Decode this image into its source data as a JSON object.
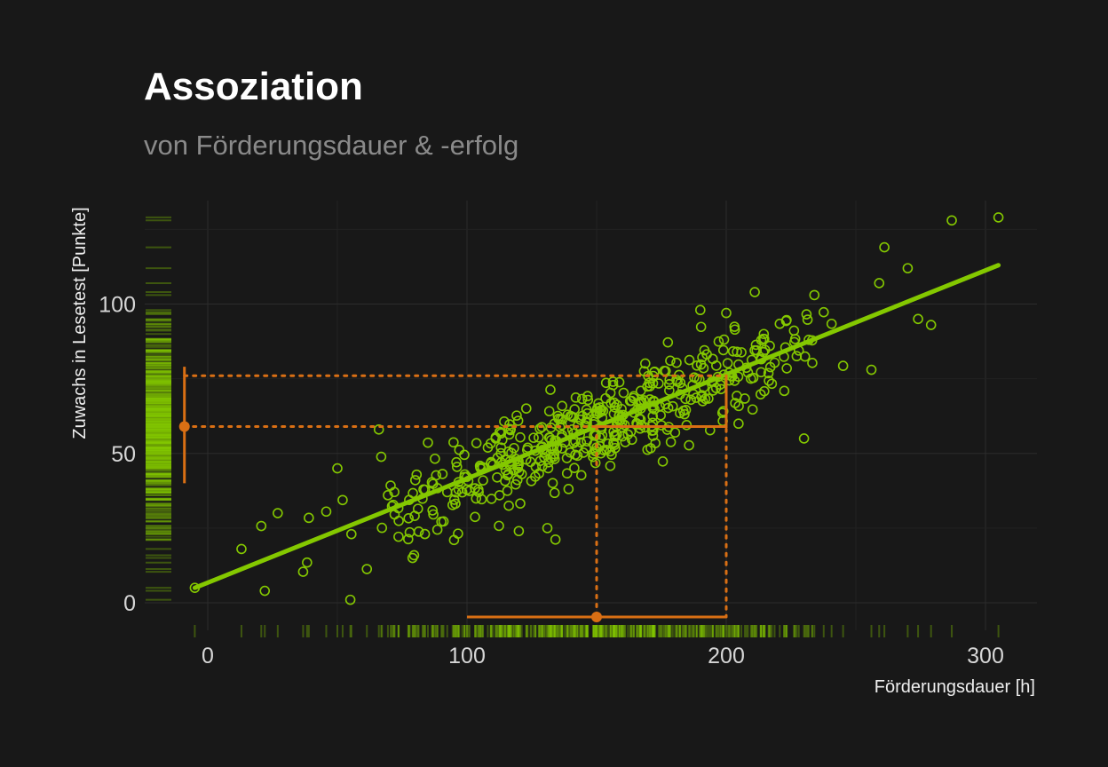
{
  "header": {
    "title": "Assoziation",
    "subtitle": "von Förderungsdauer & -erfolg"
  },
  "colors": {
    "background": "#181818",
    "points": "#84c800",
    "fit_line": "#84c800",
    "highlight": "#d96f14",
    "grid": "#2a2a2a"
  },
  "chart_data": {
    "type": "scatter",
    "title": "Assoziation",
    "subtitle": "von Förderungsdauer & -erfolg",
    "xlabel": "Förderungsdauer [h]",
    "ylabel": "Zuwachs in Lesetest [Punkte]",
    "xlim": [
      -25,
      320
    ],
    "ylim": [
      -12,
      130
    ],
    "x_ticks": [
      0,
      100,
      200,
      300
    ],
    "y_ticks": [
      0,
      50,
      100
    ],
    "grid": true,
    "legend": "none",
    "point_count": 500,
    "point_style": "open circles",
    "rug_plots": [
      "x-bottom",
      "y-left"
    ],
    "regression_line": {
      "x": [
        -5,
        305
      ],
      "y": [
        5,
        113
      ]
    },
    "outliers": [
      {
        "x": 287,
        "y": 128
      },
      {
        "x": 305,
        "y": 129
      },
      {
        "x": 261,
        "y": 119
      },
      {
        "x": 270,
        "y": 112
      },
      {
        "x": 259,
        "y": 107
      },
      {
        "x": 234,
        "y": 103
      },
      {
        "x": 211,
        "y": 104
      },
      {
        "x": 22,
        "y": 4
      },
      {
        "x": 55,
        "y": 1
      },
      {
        "x": -5,
        "y": 5
      },
      {
        "x": 13,
        "y": 18
      },
      {
        "x": 27,
        "y": 30
      },
      {
        "x": 79,
        "y": 15
      },
      {
        "x": 256,
        "y": 78
      },
      {
        "x": 230,
        "y": 55
      },
      {
        "x": 66,
        "y": 58
      },
      {
        "x": 50,
        "y": 45
      },
      {
        "x": 95,
        "y": 21
      },
      {
        "x": 120,
        "y": 24
      },
      {
        "x": 131,
        "y": 25
      },
      {
        "x": 279,
        "y": 93
      },
      {
        "x": 274,
        "y": 95
      },
      {
        "x": 190,
        "y": 98
      },
      {
        "x": 200,
        "y": 97
      }
    ],
    "highlight": {
      "x_interval": {
        "low": 100,
        "center": 150,
        "high": 200
      },
      "y_interval": {
        "low": 40,
        "center": 59,
        "high": 79
      },
      "reference_y": [
        59,
        76
      ]
    }
  }
}
